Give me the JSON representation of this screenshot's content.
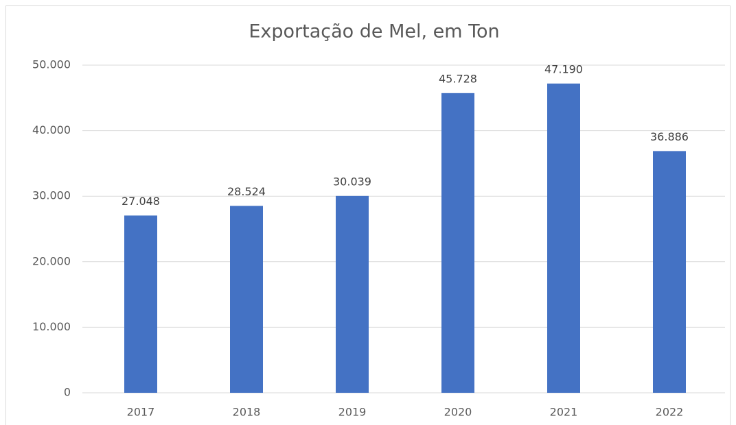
{
  "chart_data": {
    "type": "bar",
    "title": "Exportação de Mel, em Ton",
    "categories": [
      "2017",
      "2018",
      "2019",
      "2020",
      "2021",
      "2022"
    ],
    "values": [
      27048,
      28524,
      30039,
      45728,
      47190,
      36886
    ],
    "value_labels": [
      "27.048",
      "28.524",
      "30.039",
      "45.728",
      "47.190",
      "36.886"
    ],
    "color": "#4472c4",
    "ylim": [
      0,
      50000
    ],
    "yticks": [
      0,
      {
        "value": 10000,
        "label": "10.000"
      },
      {
        "value": 20000,
        "label": "20.000"
      },
      {
        "value": 30000,
        "label": "30.000"
      },
      {
        "value": 40000,
        "label": "40.000"
      },
      {
        "value": 50000,
        "label": "50.000"
      }
    ],
    "grid": true
  }
}
